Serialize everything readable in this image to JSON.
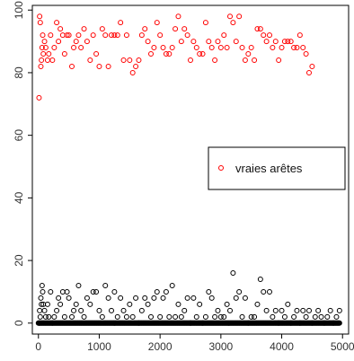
{
  "chart_data": {
    "type": "scatter",
    "title": "",
    "xlabel": "",
    "ylabel": "",
    "xlim": [
      -100,
      5100
    ],
    "ylim": [
      -3.5,
      101.5
    ],
    "x_ticks": [
      "0",
      "1000",
      "2000",
      "3000",
      "4000",
      "5000"
    ],
    "x_tick_values": [
      0,
      1000,
      2000,
      3000,
      4000,
      5000
    ],
    "y_ticks": [
      "0",
      "20",
      "40",
      "60",
      "80",
      "100"
    ],
    "y_tick_values": [
      0,
      20,
      40,
      60,
      80,
      100
    ],
    "grid": false,
    "legend": {
      "position": "right-middle",
      "entries": [
        {
          "label": "vraies arêtes",
          "color": "#ff0000",
          "marker": "open-circle"
        }
      ]
    },
    "series": [
      {
        "name": "vraies arêtes",
        "color": "#ff0000",
        "marker": "open-circle",
        "points": [
          [
            10,
            72
          ],
          [
            20,
            98
          ],
          [
            30,
            96
          ],
          [
            40,
            82
          ],
          [
            50,
            84
          ],
          [
            60,
            88
          ],
          [
            70,
            92
          ],
          [
            80,
            86
          ],
          [
            100,
            90
          ],
          [
            120,
            88
          ],
          [
            150,
            84
          ],
          [
            170,
            86
          ],
          [
            200,
            92
          ],
          [
            230,
            84
          ],
          [
            260,
            88
          ],
          [
            300,
            96
          ],
          [
            330,
            90
          ],
          [
            360,
            94
          ],
          [
            400,
            92
          ],
          [
            430,
            86
          ],
          [
            470,
            92
          ],
          [
            500,
            92
          ],
          [
            550,
            82
          ],
          [
            580,
            88
          ],
          [
            620,
            90
          ],
          [
            660,
            92
          ],
          [
            700,
            88
          ],
          [
            750,
            94
          ],
          [
            800,
            90
          ],
          [
            850,
            84
          ],
          [
            900,
            92
          ],
          [
            950,
            86
          ],
          [
            1000,
            82
          ],
          [
            1050,
            94
          ],
          [
            1100,
            92
          ],
          [
            1150,
            82
          ],
          [
            1200,
            92
          ],
          [
            1250,
            92
          ],
          [
            1300,
            92
          ],
          [
            1350,
            96
          ],
          [
            1400,
            84
          ],
          [
            1450,
            92
          ],
          [
            1500,
            84
          ],
          [
            1550,
            80
          ],
          [
            1600,
            82
          ],
          [
            1650,
            84
          ],
          [
            1700,
            92
          ],
          [
            1750,
            94
          ],
          [
            1800,
            90
          ],
          [
            1850,
            86
          ],
          [
            1900,
            88
          ],
          [
            1950,
            96
          ],
          [
            2000,
            92
          ],
          [
            2050,
            88
          ],
          [
            2100,
            86
          ],
          [
            2150,
            86
          ],
          [
            2200,
            88
          ],
          [
            2250,
            94
          ],
          [
            2300,
            98
          ],
          [
            2350,
            90
          ],
          [
            2400,
            94
          ],
          [
            2450,
            92
          ],
          [
            2500,
            84
          ],
          [
            2550,
            90
          ],
          [
            2600,
            88
          ],
          [
            2650,
            86
          ],
          [
            2700,
            86
          ],
          [
            2750,
            96
          ],
          [
            2800,
            90
          ],
          [
            2850,
            88
          ],
          [
            2900,
            84
          ],
          [
            2950,
            90
          ],
          [
            3000,
            88
          ],
          [
            3050,
            92
          ],
          [
            3100,
            88
          ],
          [
            3150,
            98
          ],
          [
            3200,
            96
          ],
          [
            3250,
            90
          ],
          [
            3300,
            98
          ],
          [
            3350,
            88
          ],
          [
            3400,
            84
          ],
          [
            3450,
            86
          ],
          [
            3500,
            88
          ],
          [
            3550,
            84
          ],
          [
            3600,
            94
          ],
          [
            3650,
            94
          ],
          [
            3700,
            92
          ],
          [
            3750,
            90
          ],
          [
            3800,
            92
          ],
          [
            3850,
            88
          ],
          [
            3900,
            90
          ],
          [
            3950,
            84
          ],
          [
            4000,
            88
          ],
          [
            4050,
            90
          ],
          [
            4100,
            90
          ],
          [
            4150,
            90
          ],
          [
            4200,
            88
          ],
          [
            4250,
            88
          ],
          [
            4300,
            92
          ],
          [
            4350,
            88
          ],
          [
            4400,
            86
          ],
          [
            4450,
            80
          ],
          [
            4500,
            82
          ]
        ]
      },
      {
        "name": "",
        "color": "#000000",
        "marker": "open-circle",
        "points": [
          [
            10,
            0
          ],
          [
            20,
            4
          ],
          [
            30,
            2
          ],
          [
            40,
            8
          ],
          [
            50,
            6
          ],
          [
            60,
            12
          ],
          [
            70,
            10
          ],
          [
            80,
            6
          ],
          [
            100,
            4
          ],
          [
            120,
            2
          ],
          [
            150,
            6
          ],
          [
            170,
            2
          ],
          [
            200,
            10
          ],
          [
            230,
            0
          ],
          [
            260,
            2
          ],
          [
            300,
            4
          ],
          [
            330,
            8
          ],
          [
            360,
            6
          ],
          [
            400,
            10
          ],
          [
            430,
            2
          ],
          [
            470,
            10
          ],
          [
            500,
            8
          ],
          [
            550,
            2
          ],
          [
            580,
            4
          ],
          [
            620,
            6
          ],
          [
            660,
            12
          ],
          [
            700,
            4
          ],
          [
            750,
            2
          ],
          [
            800,
            8
          ],
          [
            850,
            6
          ],
          [
            900,
            10
          ],
          [
            950,
            10
          ],
          [
            1000,
            4
          ],
          [
            1050,
            2
          ],
          [
            1100,
            12
          ],
          [
            1150,
            8
          ],
          [
            1200,
            4
          ],
          [
            1250,
            10
          ],
          [
            1300,
            2
          ],
          [
            1350,
            8
          ],
          [
            1400,
            4
          ],
          [
            1450,
            2
          ],
          [
            1500,
            6
          ],
          [
            1550,
            2
          ],
          [
            1600,
            8
          ],
          [
            1650,
            0
          ],
          [
            1700,
            4
          ],
          [
            1750,
            8
          ],
          [
            1800,
            6
          ],
          [
            1850,
            2
          ],
          [
            1900,
            8
          ],
          [
            1950,
            10
          ],
          [
            2000,
            2
          ],
          [
            2050,
            8
          ],
          [
            2100,
            10
          ],
          [
            2150,
            2
          ],
          [
            2200,
            12
          ],
          [
            2250,
            2
          ],
          [
            2300,
            6
          ],
          [
            2350,
            2
          ],
          [
            2400,
            4
          ],
          [
            2450,
            8
          ],
          [
            2500,
            0
          ],
          [
            2550,
            8
          ],
          [
            2600,
            2
          ],
          [
            2650,
            6
          ],
          [
            2700,
            0
          ],
          [
            2750,
            2
          ],
          [
            2800,
            10
          ],
          [
            2850,
            8
          ],
          [
            2900,
            2
          ],
          [
            2950,
            4
          ],
          [
            3000,
            2
          ],
          [
            3050,
            2
          ],
          [
            3100,
            6
          ],
          [
            3150,
            4
          ],
          [
            3200,
            16
          ],
          [
            3250,
            8
          ],
          [
            3300,
            10
          ],
          [
            3350,
            2
          ],
          [
            3400,
            8
          ],
          [
            3450,
            0
          ],
          [
            3500,
            2
          ],
          [
            3550,
            2
          ],
          [
            3600,
            6
          ],
          [
            3650,
            14
          ],
          [
            3700,
            10
          ],
          [
            3750,
            4
          ],
          [
            3800,
            10
          ],
          [
            3850,
            2
          ],
          [
            3900,
            4
          ],
          [
            3950,
            0
          ],
          [
            4000,
            4
          ],
          [
            4050,
            2
          ],
          [
            4100,
            6
          ],
          [
            4150,
            0
          ],
          [
            4200,
            2
          ],
          [
            4250,
            4
          ],
          [
            4300,
            0
          ],
          [
            4350,
            4
          ],
          [
            4400,
            2
          ],
          [
            4450,
            4
          ],
          [
            4500,
            0
          ],
          [
            4550,
            2
          ],
          [
            4600,
            4
          ],
          [
            4650,
            2
          ],
          [
            4700,
            0
          ],
          [
            4750,
            2
          ],
          [
            4800,
            4
          ],
          [
            4850,
            0
          ],
          [
            4900,
            2
          ],
          [
            4950,
            4
          ]
        ],
        "baseline": {
          "y": 0,
          "x_from": 0,
          "x_to": 4950,
          "step": 10
        }
      }
    ]
  }
}
